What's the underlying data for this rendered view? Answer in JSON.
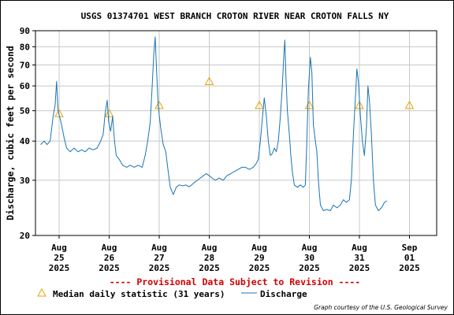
{
  "chart_data": {
    "type": "line",
    "title": "USGS 01374701 WEST BRANCH CROTON RIVER NEAR CROTON FALLS NY",
    "ylabel": "Discharge, cubic feet per second",
    "xlabel": "",
    "y_scale": "log",
    "ylim": [
      20,
      90
    ],
    "y_ticks": [
      20,
      30,
      40,
      50,
      60,
      70,
      80,
      90
    ],
    "x_ticks": [
      {
        "day": 0,
        "lines": [
          "Aug",
          "25",
          "2025"
        ]
      },
      {
        "day": 1,
        "lines": [
          "Aug",
          "26",
          "2025"
        ]
      },
      {
        "day": 2,
        "lines": [
          "Aug",
          "27",
          "2025"
        ]
      },
      {
        "day": 3,
        "lines": [
          "Aug",
          "28",
          "2025"
        ]
      },
      {
        "day": 4,
        "lines": [
          "Aug",
          "29",
          "2025"
        ]
      },
      {
        "day": 5,
        "lines": [
          "Aug",
          "30",
          "2025"
        ]
      },
      {
        "day": 6,
        "lines": [
          "Aug",
          "31",
          "2025"
        ]
      },
      {
        "day": 7,
        "lines": [
          "Sep",
          "01",
          "2025"
        ]
      }
    ],
    "grid": true,
    "series": [
      {
        "name": "Discharge",
        "color": "#1a74b5",
        "points": [
          [
            -0.37,
            39
          ],
          [
            -0.3,
            40
          ],
          [
            -0.24,
            39
          ],
          [
            -0.18,
            40
          ],
          [
            -0.12,
            48
          ],
          [
            -0.08,
            52
          ],
          [
            -0.05,
            62
          ],
          [
            -0.02,
            50
          ],
          [
            0.05,
            45
          ],
          [
            0.1,
            41
          ],
          [
            0.15,
            38
          ],
          [
            0.22,
            37
          ],
          [
            0.3,
            38
          ],
          [
            0.38,
            37
          ],
          [
            0.45,
            37.5
          ],
          [
            0.52,
            37
          ],
          [
            0.6,
            38
          ],
          [
            0.68,
            37.5
          ],
          [
            0.76,
            38
          ],
          [
            0.83,
            40
          ],
          [
            0.88,
            42
          ],
          [
            0.92,
            49
          ],
          [
            0.96,
            54
          ],
          [
            0.99,
            46
          ],
          [
            1.03,
            43
          ],
          [
            1.07,
            48
          ],
          [
            1.1,
            41
          ],
          [
            1.14,
            36
          ],
          [
            1.2,
            35
          ],
          [
            1.27,
            33.5
          ],
          [
            1.35,
            33
          ],
          [
            1.42,
            33.5
          ],
          [
            1.5,
            33
          ],
          [
            1.58,
            33.5
          ],
          [
            1.66,
            33
          ],
          [
            1.72,
            36
          ],
          [
            1.77,
            40
          ],
          [
            1.82,
            46
          ],
          [
            1.86,
            60
          ],
          [
            1.89,
            75
          ],
          [
            1.92,
            86
          ],
          [
            1.95,
            66
          ],
          [
            1.98,
            52
          ],
          [
            2.03,
            44
          ],
          [
            2.08,
            39
          ],
          [
            2.13,
            37
          ],
          [
            2.18,
            32
          ],
          [
            2.22,
            28.5
          ],
          [
            2.28,
            27
          ],
          [
            2.34,
            28.5
          ],
          [
            2.4,
            29
          ],
          [
            2.47,
            28.8
          ],
          [
            2.53,
            29
          ],
          [
            2.59,
            28.6
          ],
          [
            2.65,
            29
          ],
          [
            2.7,
            29.5
          ],
          [
            2.76,
            30
          ],
          [
            2.82,
            30.5
          ],
          [
            2.88,
            31
          ],
          [
            2.94,
            31.5
          ],
          [
            3.0,
            31
          ],
          [
            3.06,
            30.5
          ],
          [
            3.12,
            30
          ],
          [
            3.2,
            30.5
          ],
          [
            3.28,
            30
          ],
          [
            3.35,
            31
          ],
          [
            3.43,
            31.5
          ],
          [
            3.5,
            32
          ],
          [
            3.58,
            32.5
          ],
          [
            3.65,
            33
          ],
          [
            3.72,
            33
          ],
          [
            3.8,
            32.5
          ],
          [
            3.88,
            33
          ],
          [
            3.94,
            34
          ],
          [
            3.98,
            35
          ],
          [
            4.02,
            40
          ],
          [
            4.06,
            47
          ],
          [
            4.1,
            55
          ],
          [
            4.14,
            48
          ],
          [
            4.18,
            40
          ],
          [
            4.22,
            36
          ],
          [
            4.26,
            36.5
          ],
          [
            4.3,
            38
          ],
          [
            4.34,
            37
          ],
          [
            4.38,
            40
          ],
          [
            4.42,
            48
          ],
          [
            4.46,
            60
          ],
          [
            4.49,
            75
          ],
          [
            4.51,
            84
          ],
          [
            4.53,
            65
          ],
          [
            4.56,
            50
          ],
          [
            4.6,
            42
          ],
          [
            4.63,
            36
          ],
          [
            4.66,
            32
          ],
          [
            4.7,
            29
          ],
          [
            4.76,
            28.5
          ],
          [
            4.82,
            29
          ],
          [
            4.88,
            28.5
          ],
          [
            4.92,
            29
          ],
          [
            4.95,
            40
          ],
          [
            4.98,
            58
          ],
          [
            5.02,
            74
          ],
          [
            5.05,
            66
          ],
          [
            5.08,
            45
          ],
          [
            5.12,
            40
          ],
          [
            5.15,
            37
          ],
          [
            5.18,
            30
          ],
          [
            5.22,
            25
          ],
          [
            5.28,
            24
          ],
          [
            5.35,
            24.2
          ],
          [
            5.42,
            24
          ],
          [
            5.48,
            25
          ],
          [
            5.55,
            24.5
          ],
          [
            5.62,
            25
          ],
          [
            5.68,
            26
          ],
          [
            5.74,
            25.5
          ],
          [
            5.8,
            26
          ],
          [
            5.84,
            30
          ],
          [
            5.88,
            42
          ],
          [
            5.92,
            55
          ],
          [
            5.95,
            68
          ],
          [
            5.98,
            62
          ],
          [
            6.02,
            48
          ],
          [
            6.06,
            40
          ],
          [
            6.1,
            36
          ],
          [
            6.14,
            44
          ],
          [
            6.17,
            60
          ],
          [
            6.2,
            54
          ],
          [
            6.24,
            42
          ],
          [
            6.28,
            30
          ],
          [
            6.32,
            25
          ],
          [
            6.38,
            24
          ],
          [
            6.44,
            24.5
          ],
          [
            6.5,
            25.5
          ],
          [
            6.55,
            25.8
          ]
        ]
      }
    ],
    "median": {
      "name": "Median daily statistic (31 years)",
      "color": "#e8a300",
      "points": [
        [
          0,
          49
        ],
        [
          1,
          49
        ],
        [
          2,
          52
        ],
        [
          3,
          62
        ],
        [
          4,
          52
        ],
        [
          5,
          52
        ],
        [
          6,
          52
        ],
        [
          7,
          52
        ]
      ]
    },
    "provisional_note": "---- Provisional Data Subject to Revision ----",
    "legend": [
      "Median daily statistic (31 years)",
      "Discharge"
    ],
    "credit": "Graph courtesy of the U.S. Geological Survey"
  }
}
